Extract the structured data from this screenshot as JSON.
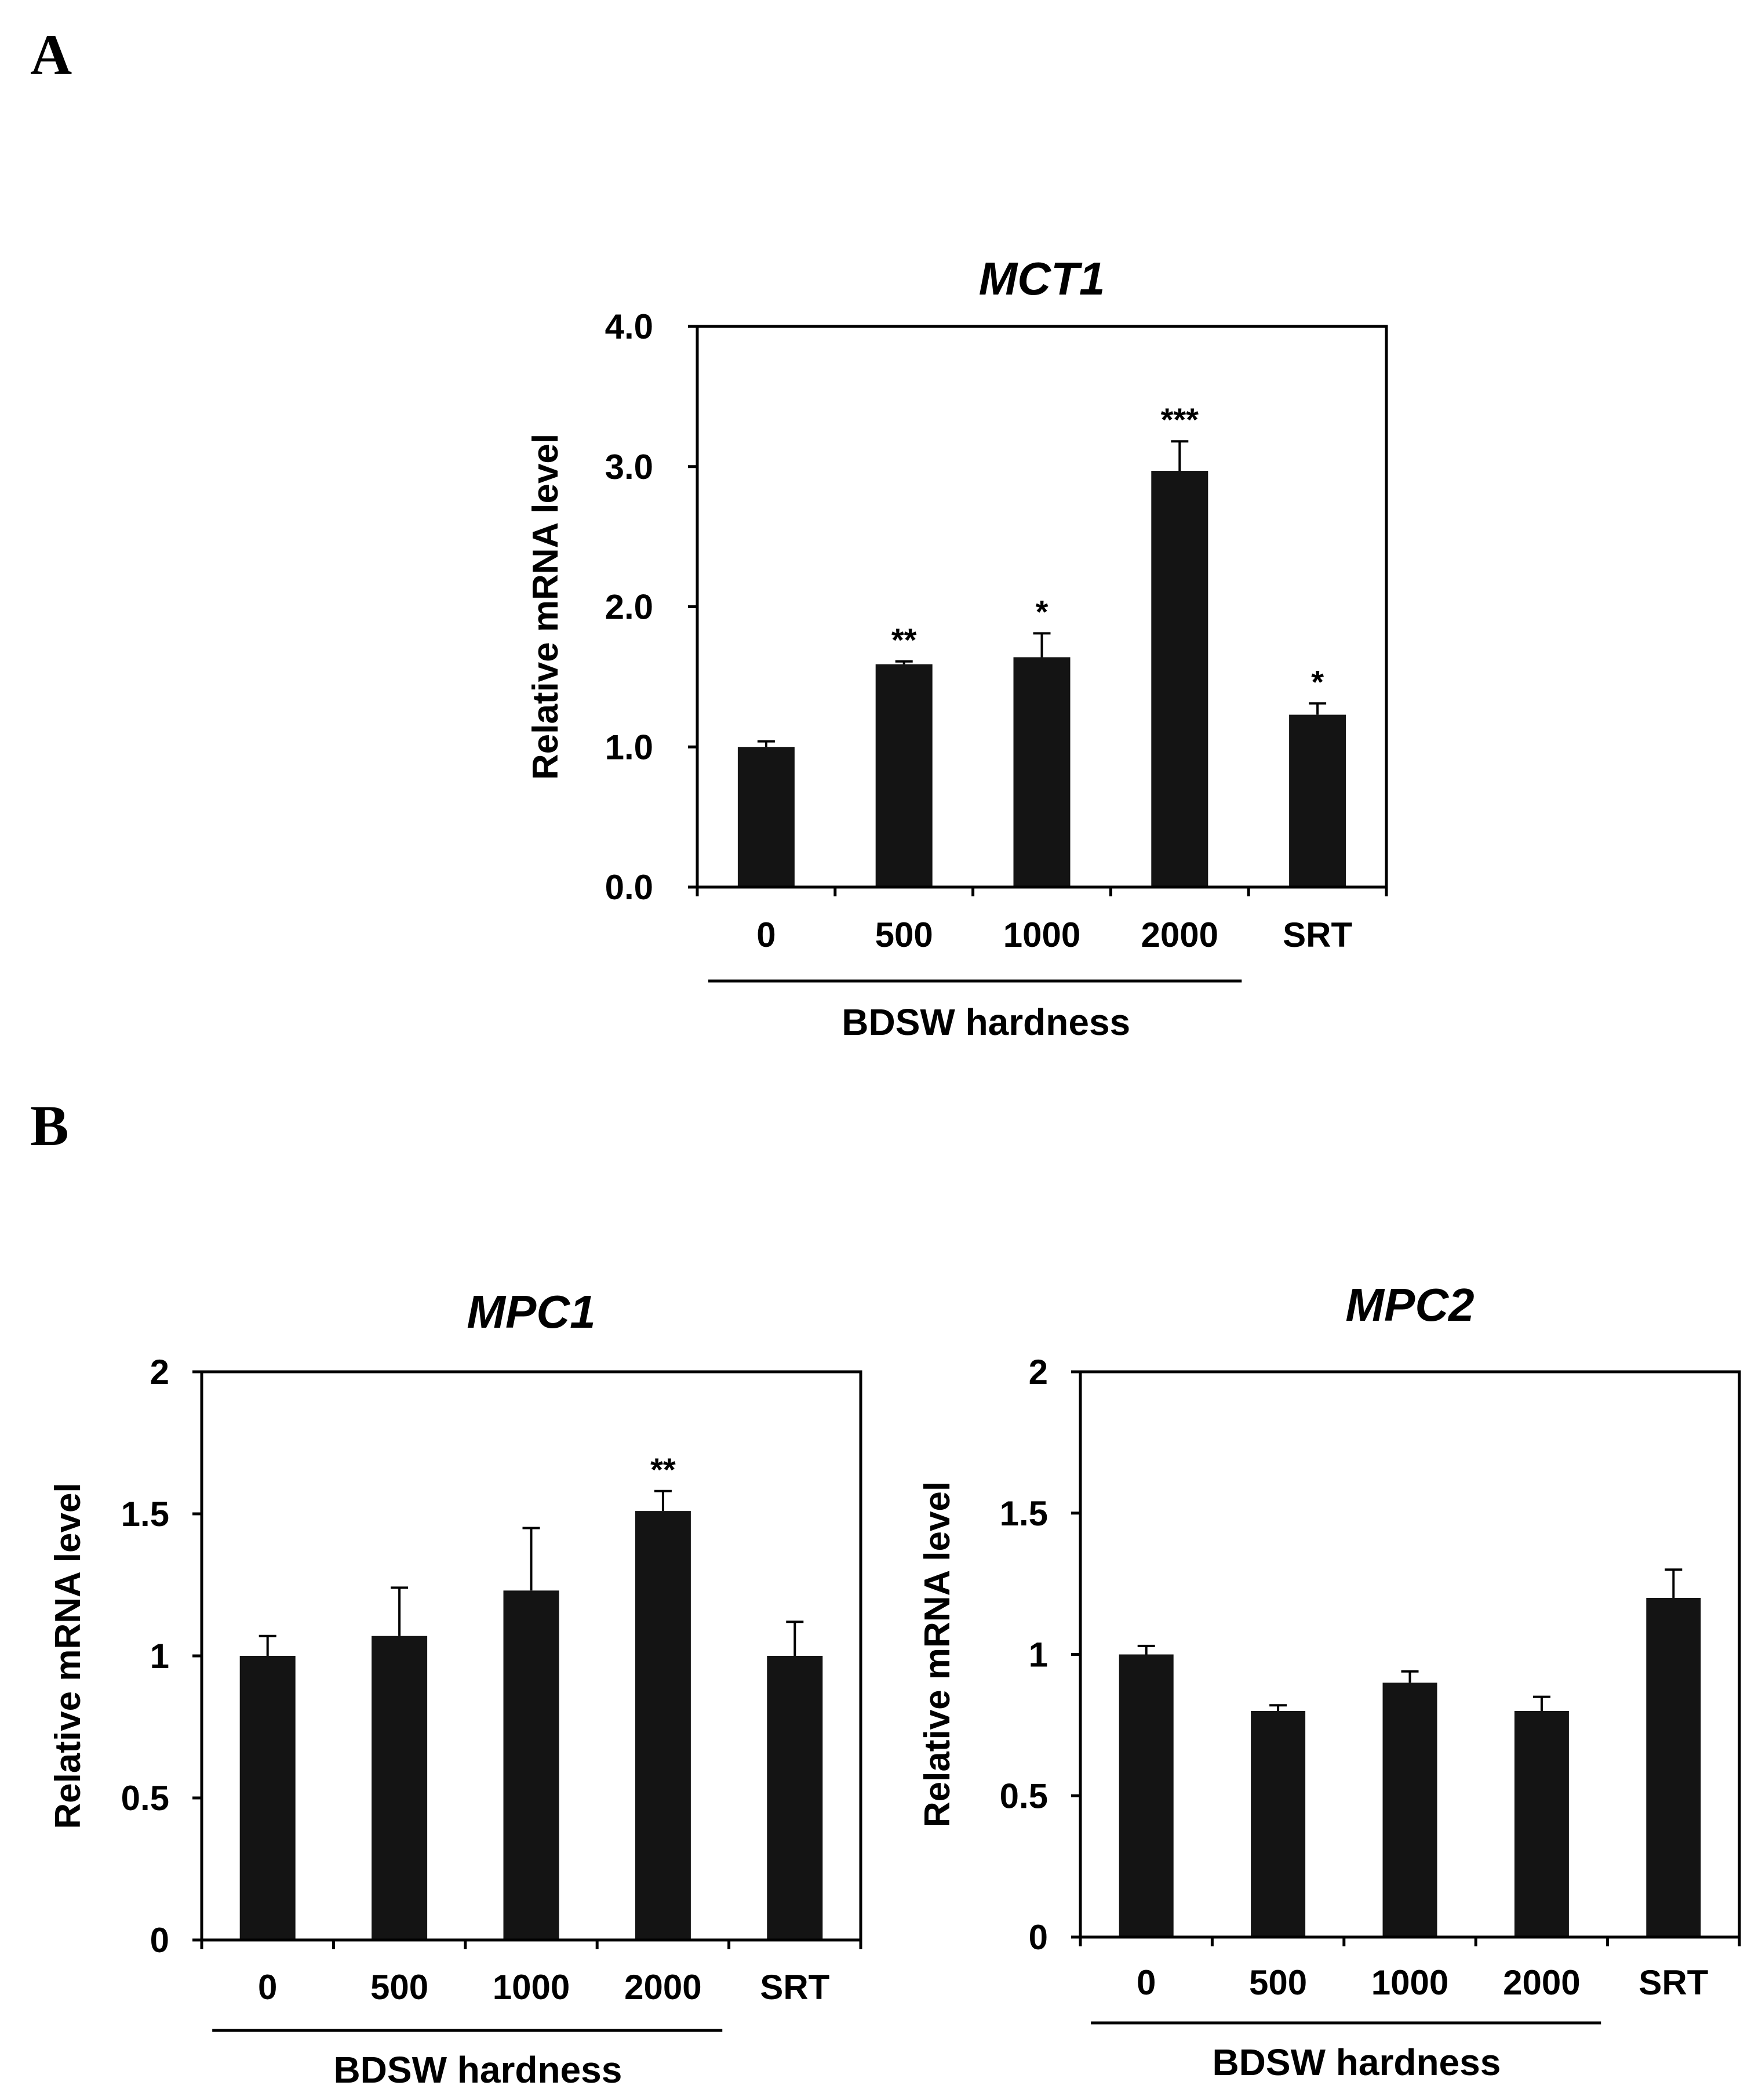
{
  "panels": [
    {
      "letter": "A"
    },
    {
      "letter": "B"
    }
  ],
  "chart_data": [
    {
      "type": "bar",
      "panel": "A",
      "title": "MCT1",
      "ylabel": "Relative mRNA level",
      "xlabel": "",
      "categories": [
        "0",
        "500",
        "1000",
        "2000",
        "SRT"
      ],
      "values": [
        1.0,
        1.59,
        1.64,
        2.97,
        1.23
      ],
      "errors": [
        0.04,
        0.02,
        0.17,
        0.21,
        0.08
      ],
      "significance": [
        "",
        "**",
        "*",
        "***",
        "*"
      ],
      "ylim": [
        0,
        4
      ],
      "yticks": [
        0,
        1,
        2,
        3,
        4
      ],
      "ytick_labels": [
        "0.0",
        "1.0",
        "2.0",
        "3.0",
        "4.0"
      ],
      "group_label": "BDSW hardness",
      "group_span": [
        "0",
        "2000"
      ],
      "bar_color": "#141414",
      "grid": false
    },
    {
      "type": "bar",
      "panel": "B",
      "title": "MPC1",
      "ylabel": "Relative mRNA level",
      "xlabel": "",
      "categories": [
        "0",
        "500",
        "1000",
        "2000",
        "SRT"
      ],
      "values": [
        1.0,
        1.07,
        1.23,
        1.51,
        1.0
      ],
      "errors": [
        0.07,
        0.17,
        0.22,
        0.07,
        0.12
      ],
      "significance": [
        "",
        "",
        "",
        "**",
        ""
      ],
      "ylim": [
        0,
        2
      ],
      "yticks": [
        0,
        0.5,
        1,
        1.5,
        2
      ],
      "ytick_labels": [
        "0",
        "0.5",
        "1",
        "1.5",
        "2"
      ],
      "group_label": "BDSW hardness",
      "group_span": [
        "0",
        "2000"
      ],
      "bar_color": "#141414",
      "grid": false
    },
    {
      "type": "bar",
      "panel": "B",
      "title": "MPC2",
      "ylabel": "Relative mRNA level",
      "xlabel": "",
      "categories": [
        "0",
        "500",
        "1000",
        "2000",
        "SRT"
      ],
      "values": [
        1.0,
        0.8,
        0.9,
        0.8,
        1.2
      ],
      "errors": [
        0.03,
        0.02,
        0.04,
        0.05,
        0.1
      ],
      "significance": [
        "",
        "",
        "",
        "",
        ""
      ],
      "ylim": [
        0,
        2
      ],
      "yticks": [
        0,
        0.5,
        1,
        1.5,
        2
      ],
      "ytick_labels": [
        "0",
        "0.5",
        "1",
        "1.5",
        "2"
      ],
      "group_label": "BDSW hardness",
      "group_span": [
        "0",
        "2000"
      ],
      "bar_color": "#141414",
      "grid": false
    }
  ]
}
